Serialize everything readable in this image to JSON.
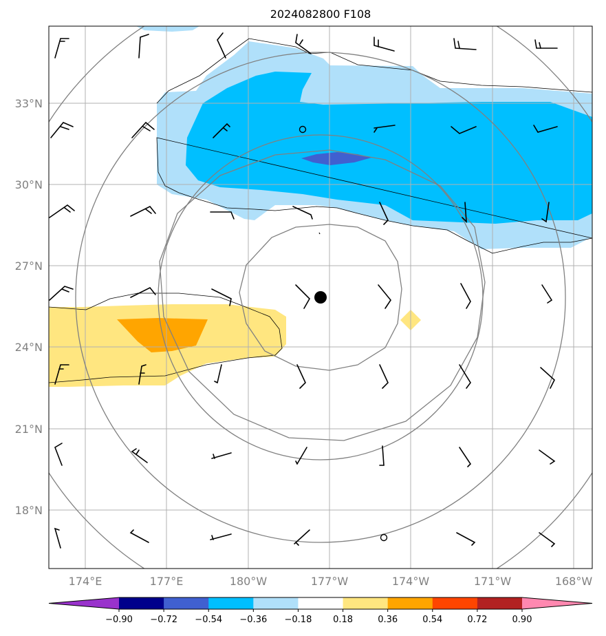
{
  "title": "2024082800 F108",
  "lat_labels": [
    "33°N",
    "30°N",
    "27°N",
    "24°N",
    "21°N",
    "18°N"
  ],
  "lon_labels": [
    "174°E",
    "177°E",
    "180°W",
    "177°W",
    "174°W",
    "171°W",
    "168°W"
  ],
  "colorbar": {
    "ticks": [
      "−0.90",
      "−0.72",
      "−0.54",
      "−0.36",
      "−0.18",
      "0.18",
      "0.36",
      "0.54",
      "0.72",
      "0.90"
    ],
    "colors": [
      "#9932cc",
      "#00008b",
      "#4060d0",
      "#00bfff",
      "#b0e0fa",
      "#ffffff",
      "#ffe680",
      "#ffa500",
      "#ff4500",
      "#b22222",
      "#ff88b0"
    ]
  },
  "storm_center": {
    "lat": 25.8,
    "lon": -177.3
  },
  "colors": {
    "light_blue": "#b0e0fa",
    "sky_blue": "#00bfff",
    "royal_blue": "#4060d0",
    "light_yellow": "#ffe680",
    "orange": "#ffa500"
  }
}
